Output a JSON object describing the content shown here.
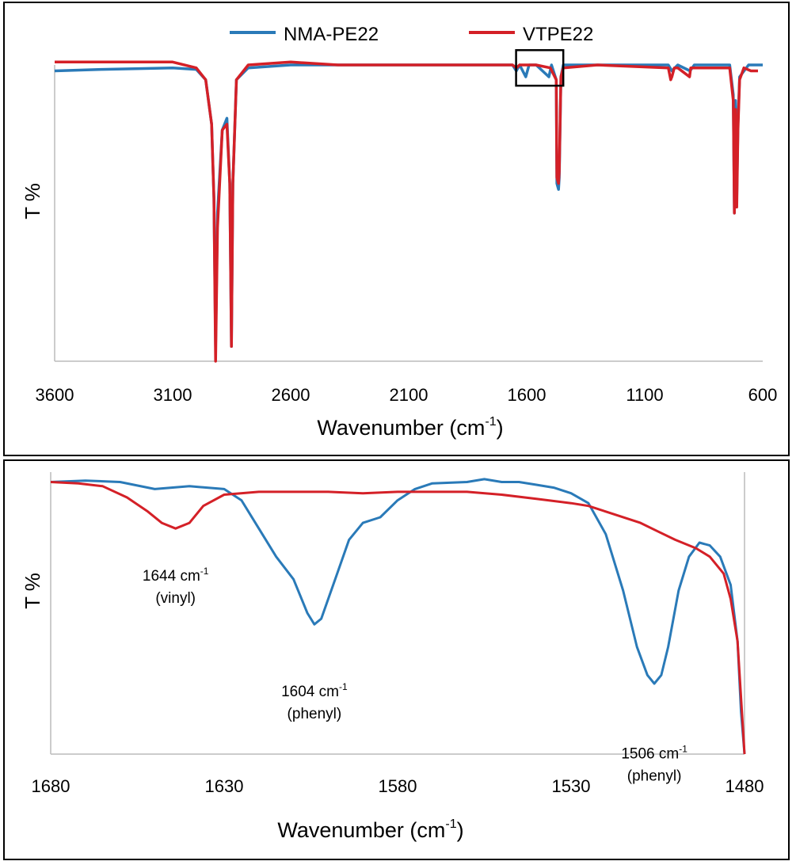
{
  "colors": {
    "series_blue": "#2a7ab8",
    "series_red": "#d42027",
    "axis": "#bcbcbc"
  },
  "chart_data": [
    {
      "type": "line",
      "ylabel": "T %",
      "xlabel_main": "Wavenumber (cm",
      "xlabel_sup": "-1",
      "xlabel_tail": ")",
      "xlim": [
        3600,
        600
      ],
      "x_reversed": true,
      "xticks": [
        "3600",
        "3100",
        "2600",
        "2100",
        "1600",
        "1100",
        "600"
      ],
      "tick_values": [
        3600,
        3100,
        2600,
        2100,
        1600,
        1100,
        600
      ],
      "ylim": [
        0,
        100
      ],
      "yticks_shown": false,
      "grid": false,
      "legend_position": "top",
      "legend": [
        "NMA-PE22",
        "VTPE22"
      ],
      "highlight_box": {
        "x": [
          1645,
          1445
        ],
        "y": [
          105,
          93
        ]
      },
      "series": [
        {
          "name": "NMA-PE22",
          "color": "#2a7ab8",
          "points": [
            [
              3600,
              98
            ],
            [
              3400,
              98.5
            ],
            [
              3100,
              99
            ],
            [
              3000,
              98.5
            ],
            [
              2960,
              95
            ],
            [
              2935,
              80
            ],
            [
              2925,
              55
            ],
            [
              2918,
              5
            ],
            [
              2910,
              50
            ],
            [
              2890,
              78
            ],
            [
              2870,
              82
            ],
            [
              2858,
              60
            ],
            [
              2851,
              5
            ],
            [
              2845,
              60
            ],
            [
              2830,
              95
            ],
            [
              2780,
              99
            ],
            [
              2600,
              100
            ],
            [
              2400,
              100
            ],
            [
              2100,
              100
            ],
            [
              1800,
              100
            ],
            [
              1660,
              100
            ],
            [
              1644,
              98
            ],
            [
              1630,
              100
            ],
            [
              1604,
              96
            ],
            [
              1590,
              100
            ],
            [
              1560,
              100
            ],
            [
              1506,
              96
            ],
            [
              1495,
              100
            ],
            [
              1475,
              95
            ],
            [
              1472,
              60
            ],
            [
              1465,
              58
            ],
            [
              1462,
              62
            ],
            [
              1455,
              96
            ],
            [
              1445,
              100
            ],
            [
              1300,
              100
            ],
            [
              1000,
              100
            ],
            [
              985,
              98
            ],
            [
              960,
              100
            ],
            [
              908,
              98
            ],
            [
              890,
              100
            ],
            [
              740,
              100
            ],
            [
              725,
              90
            ],
            [
              720,
              50
            ],
            [
              715,
              88
            ],
            [
              710,
              55
            ],
            [
              705,
              80
            ],
            [
              698,
              96
            ],
            [
              660,
              100
            ],
            [
              620,
              100
            ],
            [
              600,
              100
            ]
          ]
        },
        {
          "name": "VTPE22",
          "color": "#d42027",
          "points": [
            [
              3600,
              101
            ],
            [
              3400,
              101
            ],
            [
              3100,
              101
            ],
            [
              3000,
              99
            ],
            [
              2960,
              95
            ],
            [
              2935,
              80
            ],
            [
              2925,
              55
            ],
            [
              2918,
              0
            ],
            [
              2910,
              45
            ],
            [
              2890,
              78
            ],
            [
              2870,
              80
            ],
            [
              2858,
              60
            ],
            [
              2851,
              5
            ],
            [
              2845,
              60
            ],
            [
              2830,
              95
            ],
            [
              2780,
              100
            ],
            [
              2600,
              101
            ],
            [
              2400,
              100
            ],
            [
              2100,
              100
            ],
            [
              1800,
              100
            ],
            [
              1660,
              100
            ],
            [
              1644,
              99
            ],
            [
              1630,
              100
            ],
            [
              1560,
              100
            ],
            [
              1500,
              99
            ],
            [
              1475,
              95
            ],
            [
              1472,
              62
            ],
            [
              1465,
              60
            ],
            [
              1462,
              64
            ],
            [
              1455,
              96
            ],
            [
              1445,
              99
            ],
            [
              1300,
              100
            ],
            [
              1000,
              99
            ],
            [
              990,
              95
            ],
            [
              985,
              96
            ],
            [
              975,
              99
            ],
            [
              960,
              99
            ],
            [
              910,
              96
            ],
            [
              905,
              99
            ],
            [
              740,
              99
            ],
            [
              725,
              88
            ],
            [
              720,
              50
            ],
            [
              715,
              85
            ],
            [
              710,
              52
            ],
            [
              705,
              78
            ],
            [
              698,
              95
            ],
            [
              680,
              99
            ],
            [
              650,
              98
            ],
            [
              620,
              98
            ]
          ]
        }
      ]
    },
    {
      "type": "line",
      "ylabel": "T %",
      "xlabel_main": "Wavenumber (cm",
      "xlabel_sup": "-1",
      "xlabel_tail": ")",
      "xlim": [
        1680,
        1480
      ],
      "x_reversed": true,
      "xticks": [
        "1680",
        "1630",
        "1580",
        "1530",
        "1480"
      ],
      "tick_values": [
        1680,
        1630,
        1580,
        1530,
        1480
      ],
      "ylim": [
        0,
        100
      ],
      "yticks_shown": false,
      "grid": false,
      "annotations": [
        {
          "main": "1644 cm",
          "sup": "-1",
          "sub": "(vinyl)",
          "x": 1644,
          "y": 71
        },
        {
          "main": "1604 cm",
          "sup": "-1",
          "sub": "(phenyl)",
          "x": 1604,
          "y": 30
        },
        {
          "main": "1506 cm",
          "sup": "-1",
          "sub": "(phenyl)",
          "x": 1506,
          "y": 8
        }
      ],
      "series": [
        {
          "name": "NMA-PE22",
          "color": "#2a7ab8",
          "points": [
            [
              1680,
              96.5
            ],
            [
              1670,
              97
            ],
            [
              1660,
              96.5
            ],
            [
              1650,
              94
            ],
            [
              1640,
              95
            ],
            [
              1630,
              94
            ],
            [
              1625,
              90
            ],
            [
              1620,
              80
            ],
            [
              1615,
              70
            ],
            [
              1610,
              62
            ],
            [
              1606,
              50
            ],
            [
              1604,
              46
            ],
            [
              1602,
              48
            ],
            [
              1598,
              62
            ],
            [
              1594,
              76
            ],
            [
              1590,
              82
            ],
            [
              1585,
              84
            ],
            [
              1580,
              90
            ],
            [
              1575,
              94
            ],
            [
              1570,
              96
            ],
            [
              1560,
              96.5
            ],
            [
              1555,
              97.5
            ],
            [
              1550,
              96.5
            ],
            [
              1545,
              96.5
            ],
            [
              1540,
              95.5
            ],
            [
              1535,
              94.5
            ],
            [
              1530,
              92.5
            ],
            [
              1525,
              89
            ],
            [
              1520,
              78
            ],
            [
              1515,
              58
            ],
            [
              1511,
              38
            ],
            [
              1508,
              28
            ],
            [
              1506,
              25
            ],
            [
              1504,
              28
            ],
            [
              1502,
              38
            ],
            [
              1499,
              58
            ],
            [
              1496,
              70
            ],
            [
              1493,
              75
            ],
            [
              1490,
              74
            ],
            [
              1487,
              70
            ],
            [
              1484,
              60
            ],
            [
              1482,
              40
            ],
            [
              1481,
              15
            ],
            [
              1480,
              0
            ]
          ]
        },
        {
          "name": "VTPE22",
          "color": "#d42027",
          "points": [
            [
              1680,
              96.5
            ],
            [
              1672,
              96
            ],
            [
              1665,
              95
            ],
            [
              1658,
              91
            ],
            [
              1652,
              86
            ],
            [
              1648,
              82
            ],
            [
              1644,
              80
            ],
            [
              1640,
              82
            ],
            [
              1636,
              88
            ],
            [
              1630,
              92
            ],
            [
              1620,
              93
            ],
            [
              1600,
              93
            ],
            [
              1590,
              92.5
            ],
            [
              1580,
              93
            ],
            [
              1570,
              93
            ],
            [
              1560,
              93
            ],
            [
              1550,
              92
            ],
            [
              1540,
              90.5
            ],
            [
              1530,
              89
            ],
            [
              1525,
              88
            ],
            [
              1520,
              86
            ],
            [
              1510,
              82
            ],
            [
              1505,
              79
            ],
            [
              1500,
              76
            ],
            [
              1494,
              73
            ],
            [
              1490,
              70
            ],
            [
              1486,
              64
            ],
            [
              1484,
              55
            ],
            [
              1482,
              40
            ],
            [
              1481,
              20
            ],
            [
              1480,
              0
            ]
          ]
        }
      ]
    }
  ]
}
